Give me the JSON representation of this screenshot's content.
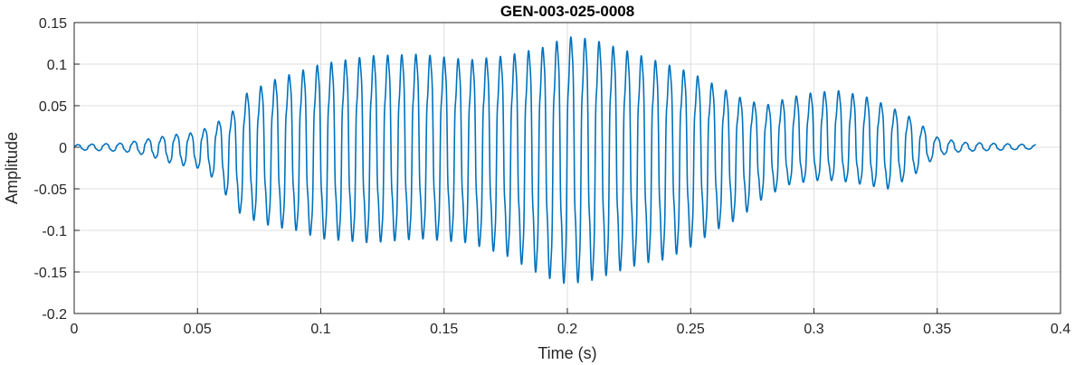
{
  "chart_data": {
    "type": "line",
    "title": "GEN-003-025-0008",
    "xlabel": "Time (s)",
    "ylabel": "Amplitude",
    "xlim": [
      0,
      0.4
    ],
    "ylim": [
      -0.2,
      0.15
    ],
    "xticks": [
      0,
      0.05,
      0.1,
      0.15,
      0.2,
      0.25,
      0.3,
      0.35,
      0.4
    ],
    "xtick_labels": [
      "0",
      "0.05",
      "0.1",
      "0.15",
      "0.2",
      "0.25",
      "0.3",
      "0.35",
      "0.4"
    ],
    "yticks": [
      0.15,
      0.1,
      0.05,
      0,
      -0.05,
      -0.1,
      -0.15,
      -0.2
    ],
    "ytick_labels": [
      "0.15",
      "0.1",
      "0.05",
      "0",
      "-0.05",
      "-0.1",
      "-0.15",
      "-0.2"
    ],
    "grid": true,
    "series": [
      {
        "color": "#0072BD",
        "duration_s": 0.39,
        "carrier_hz": 175,
        "upper_envelope": {
          "t": [
            0,
            0.02,
            0.03,
            0.04,
            0.05,
            0.058,
            0.065,
            0.07,
            0.08,
            0.09,
            0.1,
            0.12,
            0.14,
            0.16,
            0.175,
            0.19,
            0.2,
            0.21,
            0.22,
            0.23,
            0.24,
            0.25,
            0.26,
            0.27,
            0.28,
            0.29,
            0.3,
            0.31,
            0.32,
            0.33,
            0.34,
            0.35,
            0.36,
            0.37,
            0.38,
            0.39
          ],
          "v": [
            0.003,
            0.005,
            0.01,
            0.015,
            0.018,
            0.03,
            0.045,
            0.065,
            0.08,
            0.09,
            0.1,
            0.11,
            0.112,
            0.105,
            0.11,
            0.12,
            0.133,
            0.13,
            0.12,
            0.11,
            0.1,
            0.09,
            0.075,
            0.06,
            0.05,
            0.06,
            0.066,
            0.068,
            0.062,
            0.05,
            0.035,
            0.012,
            0.006,
            0.005,
            0.004,
            0.003
          ]
        },
        "lower_envelope": {
          "t": [
            0,
            0.02,
            0.03,
            0.04,
            0.05,
            0.058,
            0.065,
            0.07,
            0.08,
            0.09,
            0.1,
            0.12,
            0.14,
            0.16,
            0.175,
            0.19,
            0.2,
            0.21,
            0.22,
            0.23,
            0.24,
            0.25,
            0.26,
            0.27,
            0.28,
            0.29,
            0.3,
            0.31,
            0.32,
            0.33,
            0.34,
            0.35,
            0.36,
            0.37,
            0.38,
            0.39
          ],
          "v": [
            -0.003,
            -0.005,
            -0.01,
            -0.02,
            -0.025,
            -0.04,
            -0.075,
            -0.085,
            -0.095,
            -0.1,
            -0.11,
            -0.115,
            -0.11,
            -0.115,
            -0.13,
            -0.155,
            -0.165,
            -0.16,
            -0.15,
            -0.14,
            -0.135,
            -0.12,
            -0.1,
            -0.085,
            -0.06,
            -0.045,
            -0.04,
            -0.04,
            -0.045,
            -0.05,
            -0.035,
            -0.01,
            -0.005,
            -0.004,
            -0.003,
            -0.002
          ]
        }
      }
    ]
  }
}
